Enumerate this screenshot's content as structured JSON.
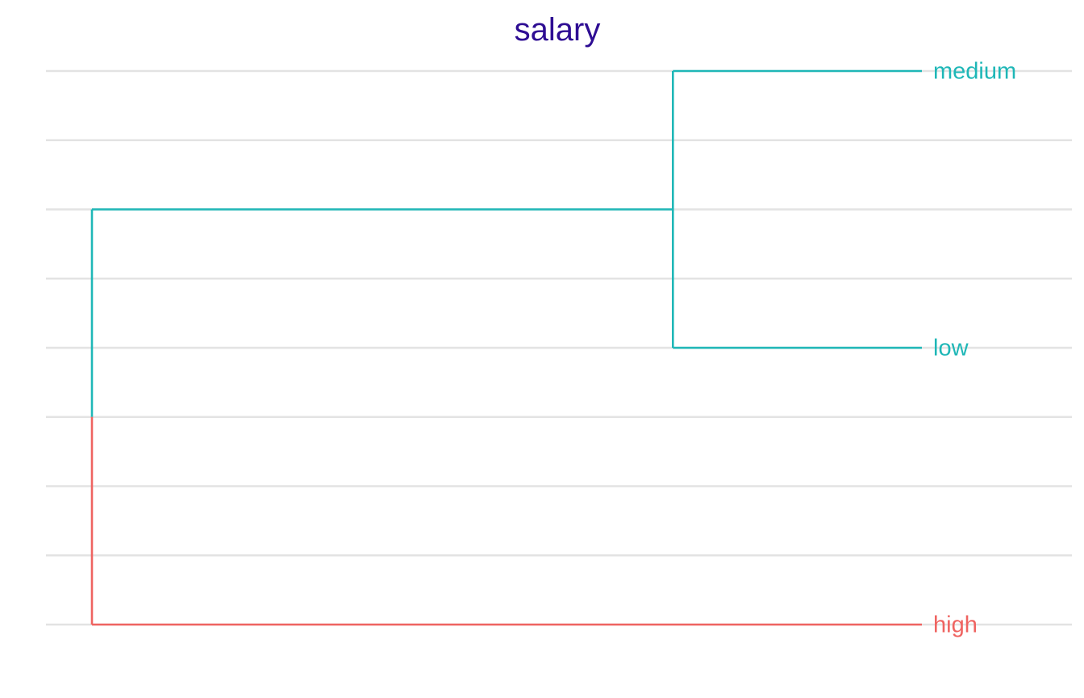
{
  "chart_data": {
    "type": "dendrogram",
    "title": "salary",
    "orientation": "horizontal",
    "leaves": [
      {
        "label": "medium",
        "cluster": 1
      },
      {
        "label": "low",
        "cluster": 1
      },
      {
        "label": "high",
        "cluster": 2
      }
    ],
    "merges": [
      {
        "children": [
          "medium",
          "low"
        ],
        "height": 0.3,
        "cluster": 1
      },
      {
        "children": [
          "medium+low",
          "high"
        ],
        "height": 1.0,
        "cluster": 0
      }
    ],
    "colors": {
      "title": "#2E0D93",
      "cluster1": "#1FB7B7",
      "cluster2": "#EF6461",
      "grid": "#E3E3E3",
      "background": "#FFFFFF"
    },
    "grid": true,
    "legend": "none"
  }
}
